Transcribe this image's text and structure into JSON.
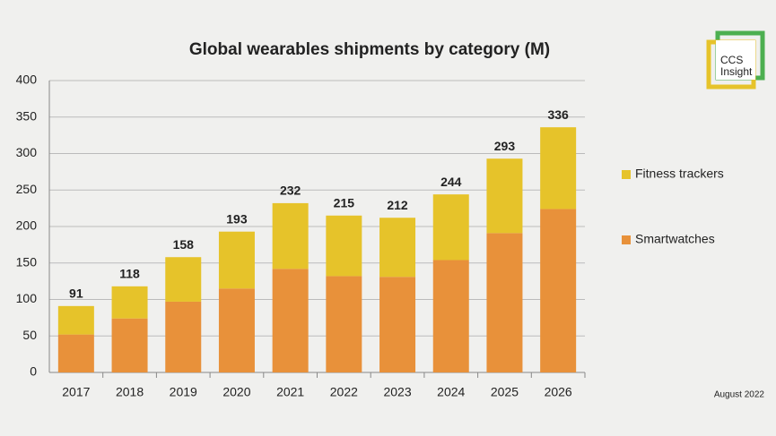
{
  "chart_data": {
    "type": "stacked-bar",
    "title": "Global wearables shipments by category (M)",
    "categories": [
      "2017",
      "2018",
      "2019",
      "2020",
      "2021",
      "2022",
      "2023",
      "2024",
      "2025",
      "2026"
    ],
    "series": [
      {
        "name": "Smartwatches",
        "color": "#e8913a",
        "values": [
          52,
          74,
          97,
          115,
          142,
          132,
          131,
          154,
          191,
          224
        ]
      },
      {
        "name": "Fitness trackers",
        "color": "#e6c32a",
        "values": [
          39,
          44,
          61,
          78,
          90,
          83,
          81,
          90,
          102,
          112
        ]
      }
    ],
    "totals": [
      91,
      118,
      158,
      193,
      232,
      215,
      212,
      244,
      293,
      336
    ],
    "ylim": [
      0,
      400
    ],
    "yticks": [
      0,
      50,
      100,
      150,
      200,
      250,
      300,
      350,
      400
    ],
    "grid": true,
    "legend": "right",
    "logo": [
      "CCS",
      "Insight"
    ],
    "footnote": "August 2022"
  }
}
